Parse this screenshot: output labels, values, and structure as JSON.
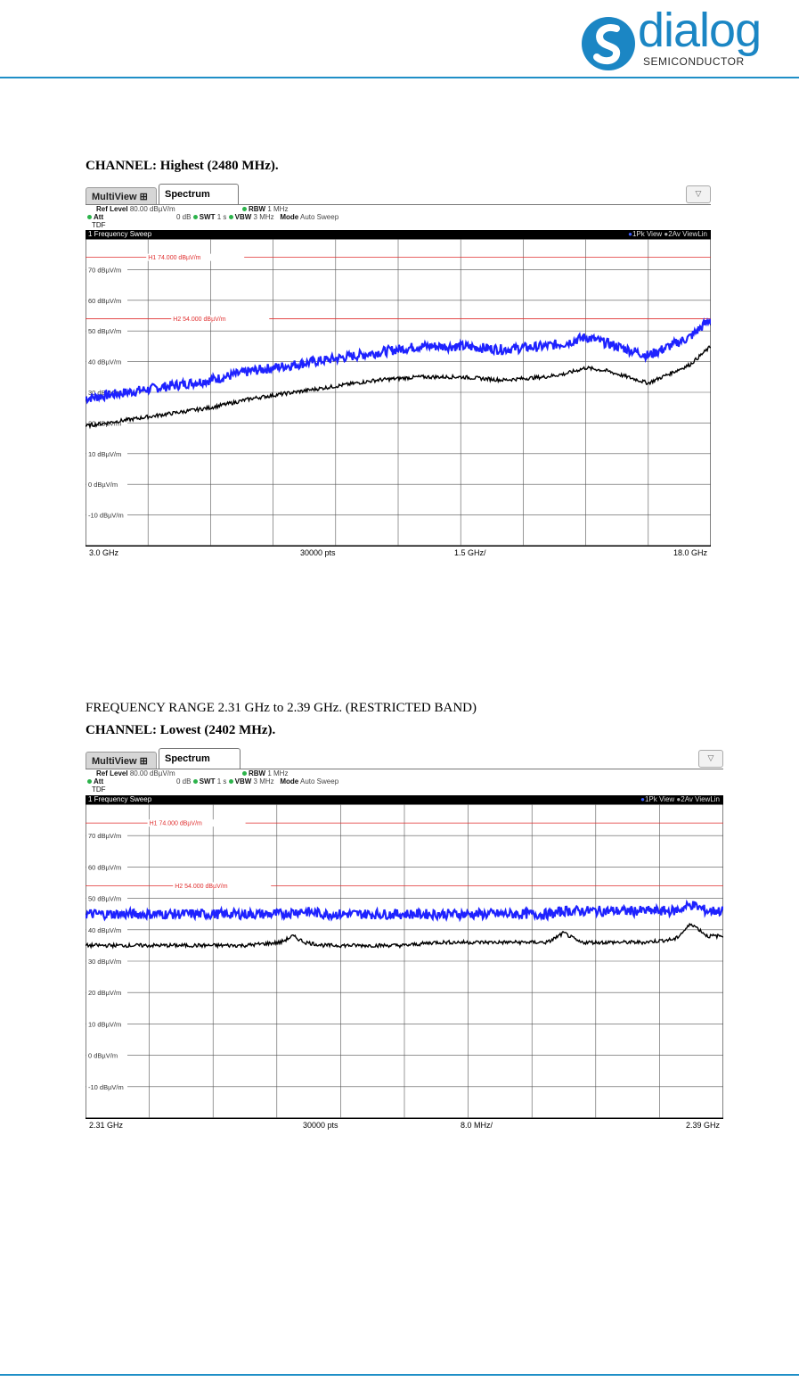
{
  "logo": {
    "word": "dialog",
    "sub": "SEMICONDUCTOR"
  },
  "captions": {
    "chart1_channel": "CHANNEL: Highest (2480 MHz).",
    "chart2_range": "FREQUENCY RANGE 2.31 GHz to 2.39 GHz. (RESTRICTED BAND)",
    "chart2_channel": "CHANNEL: Lowest (2402 MHz)."
  },
  "colors": {
    "accent": "#1f8fc7",
    "pk_trace": "#1e22ff",
    "av_trace": "#000000",
    "limit": "#e03030"
  },
  "chart_data": [
    {
      "type": "line",
      "tabs": [
        "MultiView",
        "Spectrum"
      ],
      "info": {
        "ref_level_label": "Ref Level",
        "ref_level": "80.00 dBµV/m",
        "att_label": "Att",
        "att": "0 dB",
        "swt_label": "SWT",
        "swt": "1 s",
        "rbw_label": "RBW",
        "rbw": "1 MHz",
        "vbw_label": "VBW",
        "vbw": "3 MHz",
        "mode_label": "Mode",
        "mode": "Auto Sweep",
        "tdf": "TDF"
      },
      "sweep_title": "1 Frequency Sweep",
      "legend": [
        "1Pk View",
        "2Av ViewLin"
      ],
      "yticks": [
        {
          "v": 70,
          "t": "70 dBµV/m"
        },
        {
          "v": 60,
          "t": "60 dBµV/m"
        },
        {
          "v": 50,
          "t": "50 dBµV/m"
        },
        {
          "v": 40,
          "t": "40 dBµV/m"
        },
        {
          "v": 30,
          "t": "30 dBµV/m"
        },
        {
          "v": 20,
          "t": "20 dBµV/m"
        },
        {
          "v": 10,
          "t": "10 dBµV/m"
        },
        {
          "v": 0,
          "t": "0 dBµV/m"
        },
        {
          "v": -10,
          "t": "-10 dBµV/m"
        }
      ],
      "ylim": [
        -20,
        80
      ],
      "xlim": [
        3.0,
        18.0
      ],
      "x_start": "3.0 GHz",
      "x_center": "30000 pts",
      "x_div": "1.5 GHz/",
      "x_stop": "18.0 GHz",
      "limits": [
        {
          "name": "H1",
          "value": 74.0,
          "label": "H1 74.000 dBµV/m"
        },
        {
          "name": "H2",
          "value": 54.0,
          "label": "H2 54.000 dBµV/m"
        }
      ],
      "series": [
        {
          "name": "1Pk View",
          "x": [
            3.0,
            4.0,
            5.0,
            6.0,
            7.0,
            8.0,
            9.0,
            10.0,
            11.0,
            12.0,
            13.0,
            14.0,
            14.5,
            15.0,
            15.5,
            16.0,
            16.5,
            17.0,
            17.5,
            18.0
          ],
          "values": [
            28,
            30,
            32,
            34,
            37,
            39,
            41,
            43,
            45,
            45,
            44,
            45,
            46,
            48,
            46,
            44,
            42,
            45,
            48,
            54
          ]
        },
        {
          "name": "2Av ViewLin",
          "x": [
            3.0,
            4.0,
            5.0,
            6.0,
            7.0,
            8.0,
            9.0,
            10.0,
            11.0,
            12.0,
            13.0,
            14.0,
            14.5,
            15.0,
            15.5,
            16.0,
            16.5,
            17.0,
            17.5,
            18.0
          ],
          "values": [
            19,
            21,
            23,
            25,
            28,
            30,
            32,
            34,
            35,
            35,
            34,
            35,
            36,
            38,
            37,
            35,
            33,
            36,
            39,
            45
          ]
        }
      ]
    },
    {
      "type": "line",
      "tabs": [
        "MultiView",
        "Spectrum"
      ],
      "info": {
        "ref_level_label": "Ref Level",
        "ref_level": "80.00 dBµV/m",
        "att_label": "Att",
        "att": "0 dB",
        "swt_label": "SWT",
        "swt": "1 s",
        "rbw_label": "RBW",
        "rbw": "1 MHz",
        "vbw_label": "VBW",
        "vbw": "3 MHz",
        "mode_label": "Mode",
        "mode": "Auto Sweep",
        "tdf": "TDF"
      },
      "sweep_title": "1 Frequency Sweep",
      "legend": [
        "1Pk View",
        "2Av ViewLin"
      ],
      "yticks": [
        {
          "v": 70,
          "t": "70 dBµV/m"
        },
        {
          "v": 60,
          "t": "60 dBµV/m"
        },
        {
          "v": 50,
          "t": "50 dBµV/m"
        },
        {
          "v": 40,
          "t": "40 dBµV/m"
        },
        {
          "v": 30,
          "t": "30 dBµV/m"
        },
        {
          "v": 20,
          "t": "20 dBµV/m"
        },
        {
          "v": 10,
          "t": "10 dBµV/m"
        },
        {
          "v": 0,
          "t": "0 dBµV/m"
        },
        {
          "v": -10,
          "t": "-10 dBµV/m"
        }
      ],
      "ylim": [
        -20,
        80
      ],
      "xlim": [
        2.31,
        2.39
      ],
      "x_start": "2.31 GHz",
      "x_center": "30000 pts",
      "x_div": "8.0 MHz/",
      "x_stop": "2.39 GHz",
      "limits": [
        {
          "name": "H1",
          "value": 74.0,
          "label": "H1 74.000 dBµV/m"
        },
        {
          "name": "H2",
          "value": 54.0,
          "label": "H2 54.000 dBµV/m"
        }
      ],
      "series": [
        {
          "name": "1Pk View",
          "x": [
            2.31,
            2.32,
            2.33,
            2.3345,
            2.337,
            2.34,
            2.35,
            2.36,
            2.3685,
            2.37,
            2.38,
            2.384,
            2.386,
            2.388,
            2.39
          ],
          "values": [
            45,
            45,
            45,
            45,
            46,
            45,
            45,
            45,
            45,
            46,
            46,
            46,
            48,
            46,
            46
          ]
        },
        {
          "name": "2Av ViewLin",
          "x": [
            2.31,
            2.32,
            2.33,
            2.3345,
            2.336,
            2.3375,
            2.34,
            2.35,
            2.354,
            2.36,
            2.368,
            2.37,
            2.372,
            2.38,
            2.384,
            2.386,
            2.388,
            2.39
          ],
          "values": [
            35,
            35,
            35,
            36,
            38,
            36,
            35,
            35,
            36,
            36,
            36,
            39,
            36,
            36,
            37,
            42,
            38,
            38
          ]
        }
      ]
    }
  ]
}
